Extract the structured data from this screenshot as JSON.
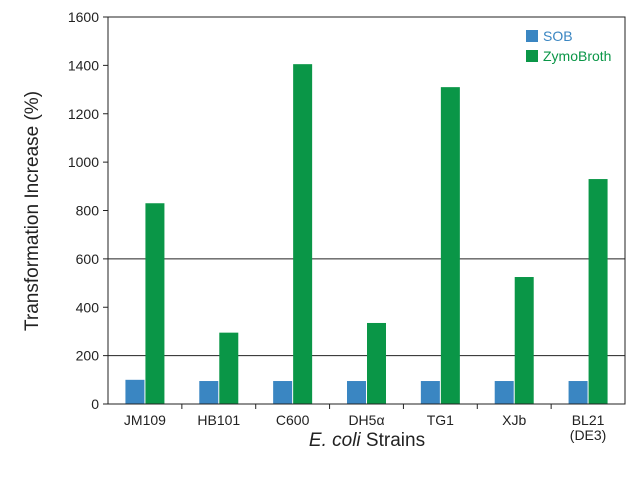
{
  "chart_data": {
    "type": "bar",
    "categories": [
      "JM109",
      "HB101",
      "C600",
      "DH5α",
      "TG1",
      "XJb",
      "BL21"
    ],
    "category_sublabels": [
      "",
      "",
      "",
      "",
      "",
      "",
      "(DE3)"
    ],
    "series": [
      {
        "name": "SOB",
        "color": "#3a86c2",
        "values": [
          100,
          95,
          95,
          95,
          95,
          95,
          95
        ]
      },
      {
        "name": "ZymoBroth",
        "color": "#0a9647",
        "values": [
          830,
          295,
          1405,
          335,
          1310,
          525,
          930
        ]
      }
    ],
    "xlabel_italic": "E. coli",
    "xlabel_rest": " Strains",
    "ylabel": "Transformation Increase (%)",
    "ylim": [
      0,
      1600
    ],
    "yticks": [
      "0",
      "200",
      "400",
      "600",
      "800",
      "1000",
      "1200",
      "1400",
      "1600"
    ],
    "gridlines_at": [
      200,
      600
    ],
    "legend_position": "top-right"
  }
}
